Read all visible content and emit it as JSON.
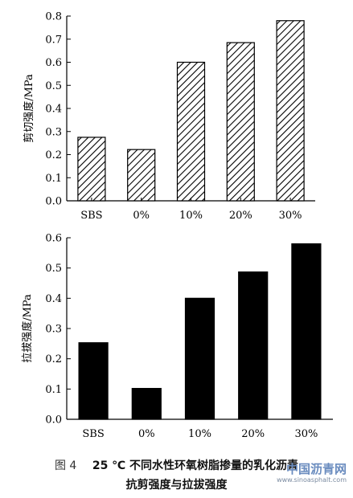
{
  "chart_data": [
    {
      "type": "bar",
      "categories": [
        "SBS",
        "0%",
        "10%",
        "20%",
        "30%"
      ],
      "values": [
        0.275,
        0.222,
        0.6,
        0.685,
        0.78
      ],
      "ylabel": "剪切强度/MPa",
      "ylim": [
        0,
        0.8
      ],
      "yticks": [
        "0.0",
        "0.1",
        "0.2",
        "0.3",
        "0.4",
        "0.5",
        "0.6",
        "0.7",
        "0.8"
      ],
      "fill": "hatched",
      "grid": false
    },
    {
      "type": "bar",
      "categories": [
        "SBS",
        "0%",
        "10%",
        "20%",
        "30%"
      ],
      "values": [
        0.253,
        0.102,
        0.4,
        0.487,
        0.58
      ],
      "ylabel": "拉拔强度/MPa",
      "ylim": [
        0,
        0.6
      ],
      "yticks": [
        "0.0",
        "0.1",
        "0.2",
        "0.3",
        "0.4",
        "0.5",
        "0.6"
      ],
      "fill": "solid",
      "grid": false
    }
  ],
  "caption": {
    "figure_label": "图 4",
    "line1": "25 ℃ 不同水性环氧树脂掺量的乳化沥青",
    "line2": "抗剪强度与拉拔强度"
  },
  "watermark": {
    "main": "中国沥青网",
    "sub": "www.sinoasphalt.com"
  },
  "colors": {
    "bar": "#000000",
    "axis": "#000000",
    "text": "#000000"
  }
}
